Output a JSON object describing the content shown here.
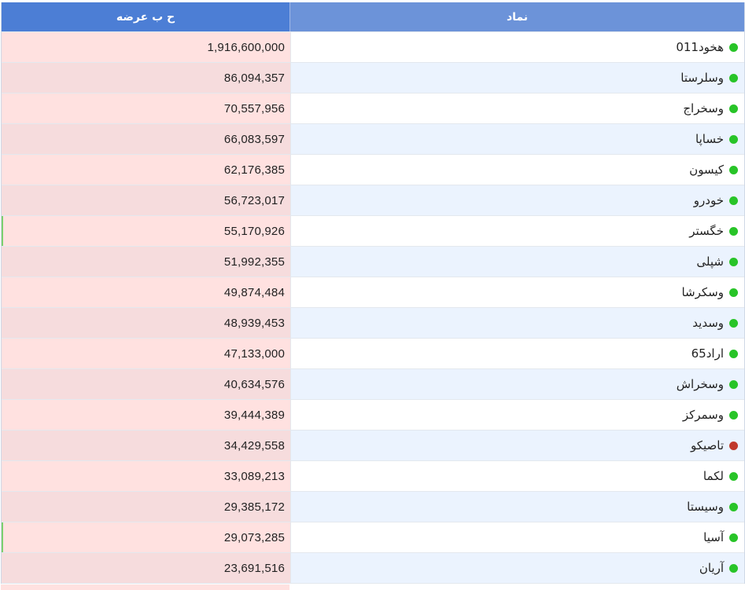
{
  "colors": {
    "header_offer_bg": "#4c7ed5",
    "header_symbol_bg": "#6c93d9",
    "value_bg": "#ffe1e0",
    "row_alt_bg": "#ebf3fe",
    "status_positive": "#28c428",
    "status_negative": "#c0392b"
  },
  "headers": {
    "offer": "ح ب عرضه",
    "symbol": "نماد"
  },
  "rows": [
    {
      "symbol": "هخود011",
      "value": "1,916,600,000",
      "status": "positive",
      "status_icon": "green-status-dot"
    },
    {
      "symbol": "وسلرستا",
      "value": "86,094,357",
      "status": "positive",
      "status_icon": "green-status-dot"
    },
    {
      "symbol": "وسخراج",
      "value": "70,557,956",
      "status": "positive",
      "status_icon": "green-status-dot"
    },
    {
      "symbol": "خساپا",
      "value": "66,083,597",
      "status": "positive",
      "status_icon": "green-status-dot"
    },
    {
      "symbol": "کیسون",
      "value": "62,176,385",
      "status": "positive",
      "status_icon": "green-status-dot"
    },
    {
      "symbol": "خودرو",
      "value": "56,723,017",
      "status": "positive",
      "status_icon": "green-status-dot"
    },
    {
      "symbol": "خگستر",
      "value": "55,170,926",
      "status": "positive",
      "status_icon": "green-status-dot"
    },
    {
      "symbol": "شپلی",
      "value": "51,992,355",
      "status": "positive",
      "status_icon": "green-status-dot"
    },
    {
      "symbol": "وسکرشا",
      "value": "49,874,484",
      "status": "positive",
      "status_icon": "green-status-dot"
    },
    {
      "symbol": "وسدید",
      "value": "48,939,453",
      "status": "positive",
      "status_icon": "green-status-dot"
    },
    {
      "symbol": "اراد65",
      "value": "47,133,000",
      "status": "positive",
      "status_icon": "green-status-dot"
    },
    {
      "symbol": "وسخراش",
      "value": "40,634,576",
      "status": "positive",
      "status_icon": "green-status-dot"
    },
    {
      "symbol": "وسمرکز",
      "value": "39,444,389",
      "status": "positive",
      "status_icon": "green-status-dot"
    },
    {
      "symbol": "تاصیکو",
      "value": "34,429,558",
      "status": "negative",
      "status_icon": "red-status-dot"
    },
    {
      "symbol": "لکما",
      "value": "33,089,213",
      "status": "positive",
      "status_icon": "green-status-dot"
    },
    {
      "symbol": "وسیستا",
      "value": "29,385,172",
      "status": "positive",
      "status_icon": "green-status-dot"
    },
    {
      "symbol": "آسیا",
      "value": "29,073,285",
      "status": "positive",
      "status_icon": "green-status-dot"
    },
    {
      "symbol": "آریان",
      "value": "23,691,516",
      "status": "positive",
      "status_icon": "green-status-dot"
    }
  ]
}
